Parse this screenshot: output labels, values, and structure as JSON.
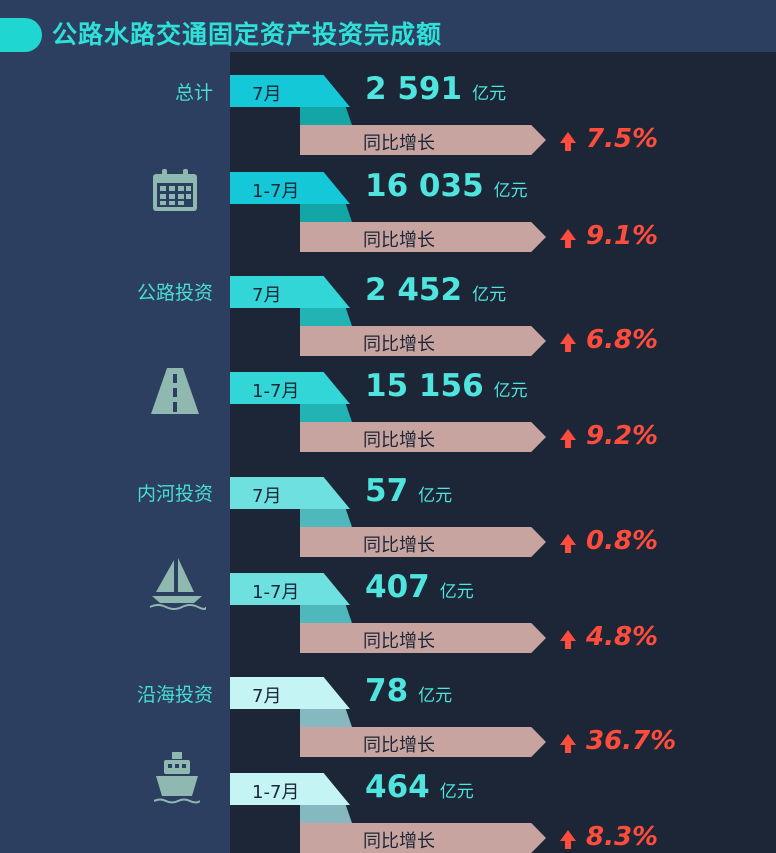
{
  "title": "公路水路交通固定资产投资完成额",
  "categories": [
    {
      "label": "总计",
      "icon": "calendar-icon",
      "rows": [
        {
          "period": "7月",
          "value": "2 591",
          "unit": "亿元",
          "growth_label": "同比增长",
          "growth": "7.5%"
        },
        {
          "period": "1-7月",
          "value": "16 035",
          "unit": "亿元",
          "growth_label": "同比增长",
          "growth": "9.1%"
        }
      ]
    },
    {
      "label": "公路投资",
      "icon": "road-icon",
      "rows": [
        {
          "period": "7月",
          "value": "2 452",
          "unit": "亿元",
          "growth_label": "同比增长",
          "growth": "6.8%"
        },
        {
          "period": "1-7月",
          "value": "15 156",
          "unit": "亿元",
          "growth_label": "同比增长",
          "growth": "9.2%"
        }
      ]
    },
    {
      "label": "内河投资",
      "icon": "sailboat-icon",
      "rows": [
        {
          "period": "7月",
          "value": "57",
          "unit": "亿元",
          "growth_label": "同比增长",
          "growth": "0.8%"
        },
        {
          "period": "1-7月",
          "value": "407",
          "unit": "亿元",
          "growth_label": "同比增长",
          "growth": "4.8%"
        }
      ]
    },
    {
      "label": "沿海投资",
      "icon": "ship-icon",
      "rows": [
        {
          "period": "7月",
          "value": "78",
          "unit": "亿元",
          "growth_label": "同比增长",
          "growth": "36.7%"
        },
        {
          "period": "1-7月",
          "value": "464",
          "unit": "亿元",
          "growth_label": "同比增长",
          "growth": "8.3%"
        }
      ]
    }
  ],
  "colors": {
    "tag_total": "#14c8d8",
    "tag_highway": "#32d6d6",
    "tag_river": "#6fe0e0",
    "tag_coastal": "#c4f4f4",
    "band": "#c8a4a0",
    "growth": "#ff4d3d",
    "icon": "#8fb8b0"
  }
}
